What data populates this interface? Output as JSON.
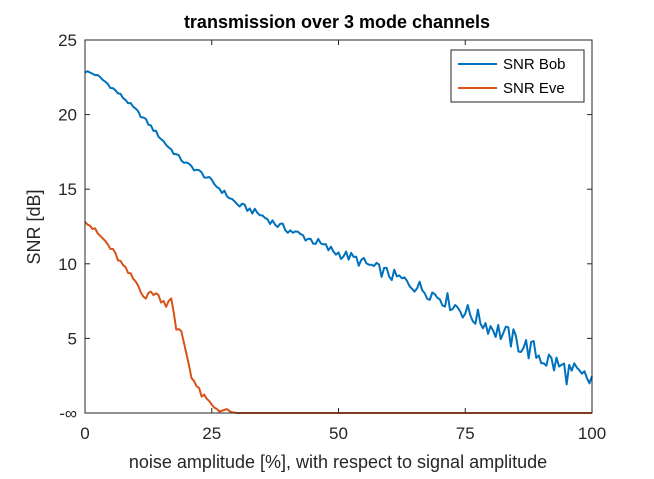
{
  "chart_data": {
    "type": "line",
    "title": "transmission over 3 mode channels",
    "xlabel": "noise amplitude [%], with respect to signal amplitude",
    "ylabel": "SNR [dB]",
    "xlim": [
      0,
      100
    ],
    "ylim": [
      0,
      25
    ],
    "x_ticks": [
      0,
      25,
      50,
      75,
      100
    ],
    "x_tick_labels": [
      "0",
      "25",
      "50",
      "75",
      "100"
    ],
    "y_ticks": [
      0,
      5,
      10,
      15,
      20,
      25
    ],
    "y_tick_labels": [
      "-∞",
      "5",
      "10",
      "15",
      "20",
      "25"
    ],
    "grid": false,
    "legend_position": "top-right",
    "series": [
      {
        "name": "SNR Bob",
        "color": "#0072BD",
        "x": [
          0,
          2,
          4,
          6,
          8,
          10,
          12,
          14,
          16,
          18,
          20,
          22,
          24,
          26,
          28,
          30,
          32,
          34,
          36,
          38,
          40,
          42,
          44,
          46,
          48,
          50,
          52,
          54,
          56,
          58,
          60,
          62,
          64,
          66,
          68,
          70,
          72,
          74,
          76,
          78,
          80,
          82,
          84,
          86,
          88,
          90,
          92,
          94,
          96,
          98,
          100
        ],
        "values": [
          22.9,
          22.7,
          22.2,
          21.6,
          21.0,
          20.3,
          19.6,
          18.8,
          18.0,
          17.3,
          16.7,
          16.3,
          15.8,
          15.2,
          14.6,
          14.0,
          13.7,
          13.4,
          13.0,
          12.6,
          12.3,
          12.0,
          11.7,
          11.4,
          11.0,
          10.7,
          10.5,
          10.2,
          9.9,
          9.6,
          9.3,
          9.0,
          8.7,
          8.4,
          8.1,
          7.8,
          7.4,
          7.0,
          6.6,
          6.2,
          5.8,
          5.4,
          5.0,
          4.6,
          4.2,
          3.8,
          3.4,
          3.0,
          2.6,
          2.2,
          2.2
        ]
      },
      {
        "name": "SNR Eve",
        "color": "#D95319",
        "x": [
          0,
          2,
          4,
          6,
          8,
          10,
          12,
          13,
          14,
          15,
          16,
          17,
          18,
          19,
          20,
          21,
          22,
          23,
          24,
          25,
          26,
          27,
          28,
          30,
          32,
          35,
          40,
          50,
          60,
          70,
          80,
          90,
          100
        ],
        "values": [
          13.0,
          12.2,
          11.5,
          10.6,
          9.6,
          8.8,
          7.7,
          8.1,
          8.0,
          7.6,
          7.3,
          7.8,
          5.5,
          5.5,
          4.0,
          2.5,
          1.8,
          1.2,
          0.9,
          0.5,
          0.3,
          0.2,
          0.1,
          0.0,
          0.0,
          0.0,
          0.0,
          0.0,
          0.0,
          0.0,
          0.0,
          0.0,
          0.0
        ]
      }
    ]
  }
}
